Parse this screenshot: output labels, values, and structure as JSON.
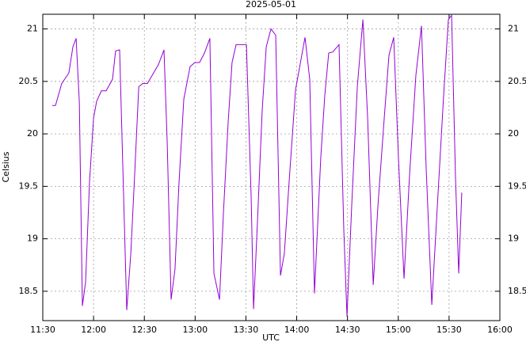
{
  "chart_data": {
    "type": "line",
    "title": "2025-05-01",
    "xlabel": "UTC",
    "ylabel": "Celsius",
    "x": [
      695.6,
      697.5,
      701.2,
      705.4,
      707.8,
      709.7,
      711.6,
      713.4,
      715.3,
      717.6,
      720,
      721.8,
      724.6,
      727.4,
      731.2,
      733,
      735.4,
      737.2,
      739.6,
      742,
      744.3,
      746.7,
      749,
      751.8,
      758.3,
      761.6,
      763.5,
      765.8,
      768.1,
      770.5,
      773.3,
      777,
      779.8,
      782.6,
      785.5,
      788.7,
      791.1,
      794.4,
      796.7,
      799.5,
      801.8,
      804.2,
      810.3,
      813.1,
      814.5,
      816.8,
      819.6,
      822,
      824.8,
      827.6,
      830.4,
      832.7,
      835.5,
      839.3,
      844.9,
      847.7,
      850.5,
      854.2,
      856.6,
      858.9,
      861.3,
      865,
      867.8,
      869.7,
      872.5,
      875.8,
      879.1,
      881.9,
      885.2,
      888,
      891.7,
      894.5,
      897.3,
      900.1,
      903.4,
      906.7,
      910.4,
      913.7,
      916.5,
      919.8,
      923.1,
      926.8,
      929.6,
      931.5,
      933.8,
      935.7,
      937.5
    ],
    "series": [
      {
        "color": "#9400d3",
        "values": [
          20.27,
          20.27,
          20.48,
          20.58,
          20.83,
          20.91,
          20.3,
          18.36,
          18.59,
          19.54,
          20.15,
          20.31,
          20.41,
          20.41,
          20.52,
          20.79,
          20.8,
          19.73,
          18.32,
          18.86,
          19.62,
          20.45,
          20.48,
          20.48,
          20.66,
          20.8,
          19.92,
          18.42,
          18.71,
          19.54,
          20.33,
          20.64,
          20.68,
          20.68,
          20.77,
          20.91,
          18.67,
          18.42,
          19.24,
          20.11,
          20.68,
          20.85,
          20.85,
          19.39,
          18.33,
          19.16,
          20.22,
          20.83,
          21.0,
          20.94,
          18.65,
          18.86,
          19.54,
          20.42,
          20.92,
          20.52,
          18.48,
          19.77,
          20.37,
          20.77,
          20.78,
          20.85,
          19.09,
          18.26,
          19.32,
          20.45,
          21.09,
          20.15,
          18.56,
          19.32,
          20.15,
          20.75,
          20.92,
          19.77,
          18.62,
          19.62,
          20.56,
          21.03,
          19.66,
          18.37,
          19.32,
          20.37,
          21.09,
          21.13,
          19.58,
          18.67,
          19.44
        ]
      }
    ],
    "xlim": [
      690,
      960
    ],
    "xticks": [
      {
        "value": 690,
        "label": "11:30"
      },
      {
        "value": 720,
        "label": "12:00"
      },
      {
        "value": 750,
        "label": "12:30"
      },
      {
        "value": 780,
        "label": "13:00"
      },
      {
        "value": 810,
        "label": "13:30"
      },
      {
        "value": 840,
        "label": "14:00"
      },
      {
        "value": 870,
        "label": "14:30"
      },
      {
        "value": 900,
        "label": "15:00"
      },
      {
        "value": 930,
        "label": "15:30"
      },
      {
        "value": 960,
        "label": "16:00"
      }
    ],
    "ylim": [
      18.22,
      21.14
    ],
    "yticks": [
      18.5,
      19,
      19.5,
      20,
      20.5,
      21
    ],
    "grid": true
  }
}
